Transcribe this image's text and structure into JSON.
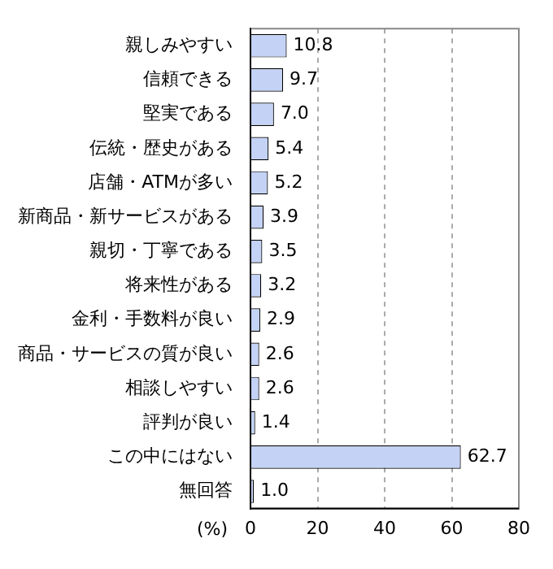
{
  "chart_data": {
    "type": "bar",
    "orientation": "horizontal",
    "xlabel": "(%)",
    "categories": [
      "親しみやすい",
      "信頼できる",
      "堅実である",
      "伝統・歴史がある",
      "店舗・ATMが多い",
      "新商品・新サービスがある",
      "親切・丁寧である",
      "将来性がある",
      "金利・手数料が良い",
      "商品・サービスの質が良い",
      "相談しやすい",
      "評判が良い",
      "この中にはない",
      "無回答"
    ],
    "values": [
      10.8,
      9.7,
      7.0,
      5.4,
      5.2,
      3.9,
      3.5,
      3.2,
      2.9,
      2.6,
      2.6,
      1.4,
      62.7,
      1.0
    ],
    "value_labels": [
      "10.8",
      "9.7",
      "7.0",
      "5.4",
      "5.2",
      "3.9",
      "3.5",
      "3.2",
      "2.9",
      "2.6",
      "2.6",
      "1.4",
      "62.7",
      "1.0"
    ],
    "color": "#c3d2f5",
    "xlim": [
      0,
      80
    ],
    "xticks": [
      0,
      20,
      40,
      60,
      80
    ],
    "grid": "x",
    "legend": false
  }
}
